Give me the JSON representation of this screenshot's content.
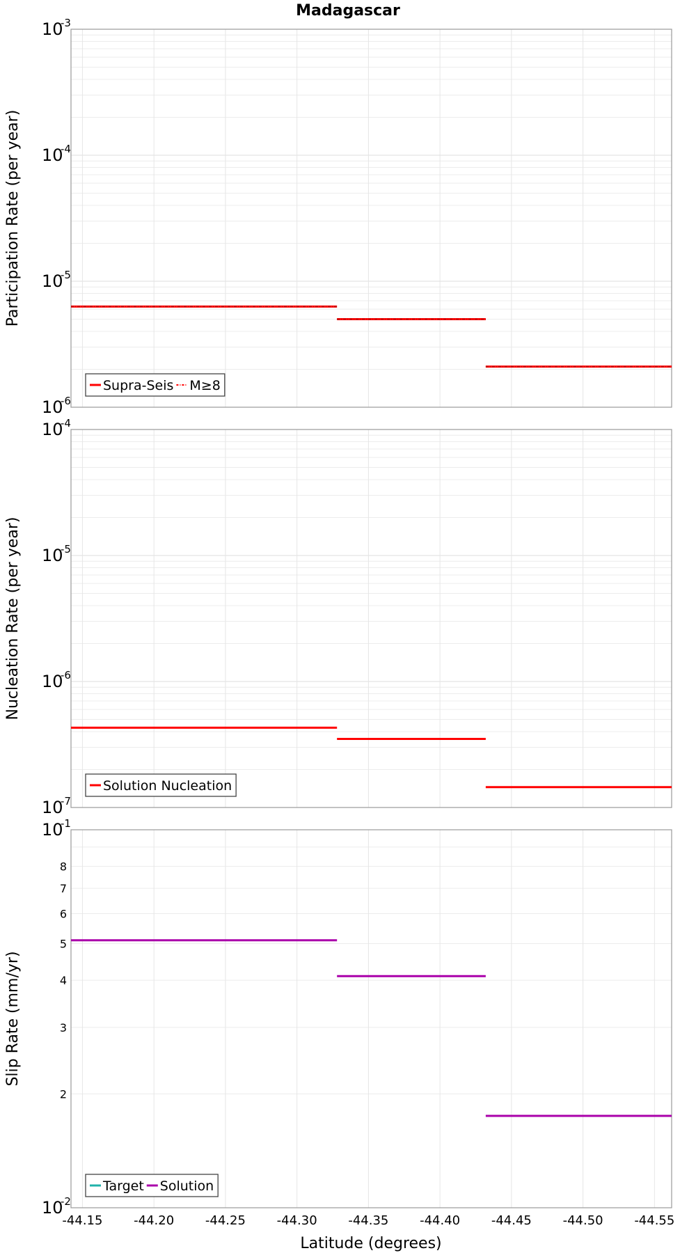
{
  "chart_data": {
    "title": "Madagascar",
    "xlabel": "Latitude (degrees)",
    "x_ticks": [
      "-44.15",
      "-44.20",
      "-44.25",
      "-44.30",
      "-44.35",
      "-44.40",
      "-44.45",
      "-44.50",
      "-44.55"
    ],
    "xlim": [
      -44.142,
      -44.562
    ],
    "panels": [
      {
        "type": "line",
        "ylabel": "Participation Rate (per year)",
        "yscale": "log",
        "ylim": [
          1e-06,
          0.001
        ],
        "decade_ticks": [
          {
            "base": "10",
            "exp": "-6"
          },
          {
            "base": "10",
            "exp": "-5"
          },
          {
            "base": "10",
            "exp": "-4"
          },
          {
            "base": "10",
            "exp": "-3"
          }
        ],
        "grid": true,
        "legend_position": "bottom-left",
        "series": [
          {
            "name": "Supra-Seis",
            "color": "#ff0000",
            "style": "solid",
            "segments": [
              {
                "x": [
                  -44.142,
                  -44.328
                ],
                "y": 6.3e-06
              },
              {
                "x": [
                  -44.328,
                  -44.432
                ],
                "y": 5e-06
              },
              {
                "x": [
                  -44.432,
                  -44.562
                ],
                "y": 2.1e-06
              }
            ]
          },
          {
            "name": "M≥8",
            "color": "#ff0000",
            "style": "dash-dot",
            "segments": [
              {
                "x": [
                  -44.142,
                  -44.328
                ],
                "y": 6.3e-06
              },
              {
                "x": [
                  -44.328,
                  -44.432
                ],
                "y": 5e-06
              },
              {
                "x": [
                  -44.432,
                  -44.562
                ],
                "y": 2.1e-06
              }
            ]
          }
        ]
      },
      {
        "type": "line",
        "ylabel": "Nucleation Rate (per year)",
        "yscale": "log",
        "ylim": [
          1e-07,
          0.0001
        ],
        "decade_ticks": [
          {
            "base": "10",
            "exp": "-7"
          },
          {
            "base": "10",
            "exp": "-6"
          },
          {
            "base": "10",
            "exp": "-5"
          },
          {
            "base": "10",
            "exp": "-4"
          }
        ],
        "grid": true,
        "legend_position": "bottom-left",
        "series": [
          {
            "name": "Solution Nucleation",
            "color": "#ff0000",
            "style": "solid",
            "segments": [
              {
                "x": [
                  -44.142,
                  -44.328
                ],
                "y": 4.3e-07
              },
              {
                "x": [
                  -44.328,
                  -44.432
                ],
                "y": 3.5e-07
              },
              {
                "x": [
                  -44.432,
                  -44.562
                ],
                "y": 1.45e-07
              }
            ]
          }
        ]
      },
      {
        "type": "line",
        "ylabel": "Slip Rate (mm/yr)",
        "yscale": "log",
        "ylim": [
          0.01,
          0.1
        ],
        "decade_ticks": [
          {
            "base": "10",
            "exp": "-2"
          },
          {
            "base": "10",
            "exp": "-1"
          }
        ],
        "minor_tick_labels": [
          "2",
          "3",
          "4",
          "5",
          "6",
          "7",
          "8"
        ],
        "grid": true,
        "legend_position": "bottom-left",
        "series": [
          {
            "name": "Target",
            "color": "#20b2aa",
            "style": "solid",
            "segments": []
          },
          {
            "name": "Solution",
            "color": "#aa00aa",
            "style": "solid",
            "segments": [
              {
                "x": [
                  -44.142,
                  -44.328
                ],
                "y": 0.051
              },
              {
                "x": [
                  -44.328,
                  -44.432
                ],
                "y": 0.041
              },
              {
                "x": [
                  -44.432,
                  -44.562
                ],
                "y": 0.0175
              }
            ]
          }
        ]
      }
    ]
  }
}
